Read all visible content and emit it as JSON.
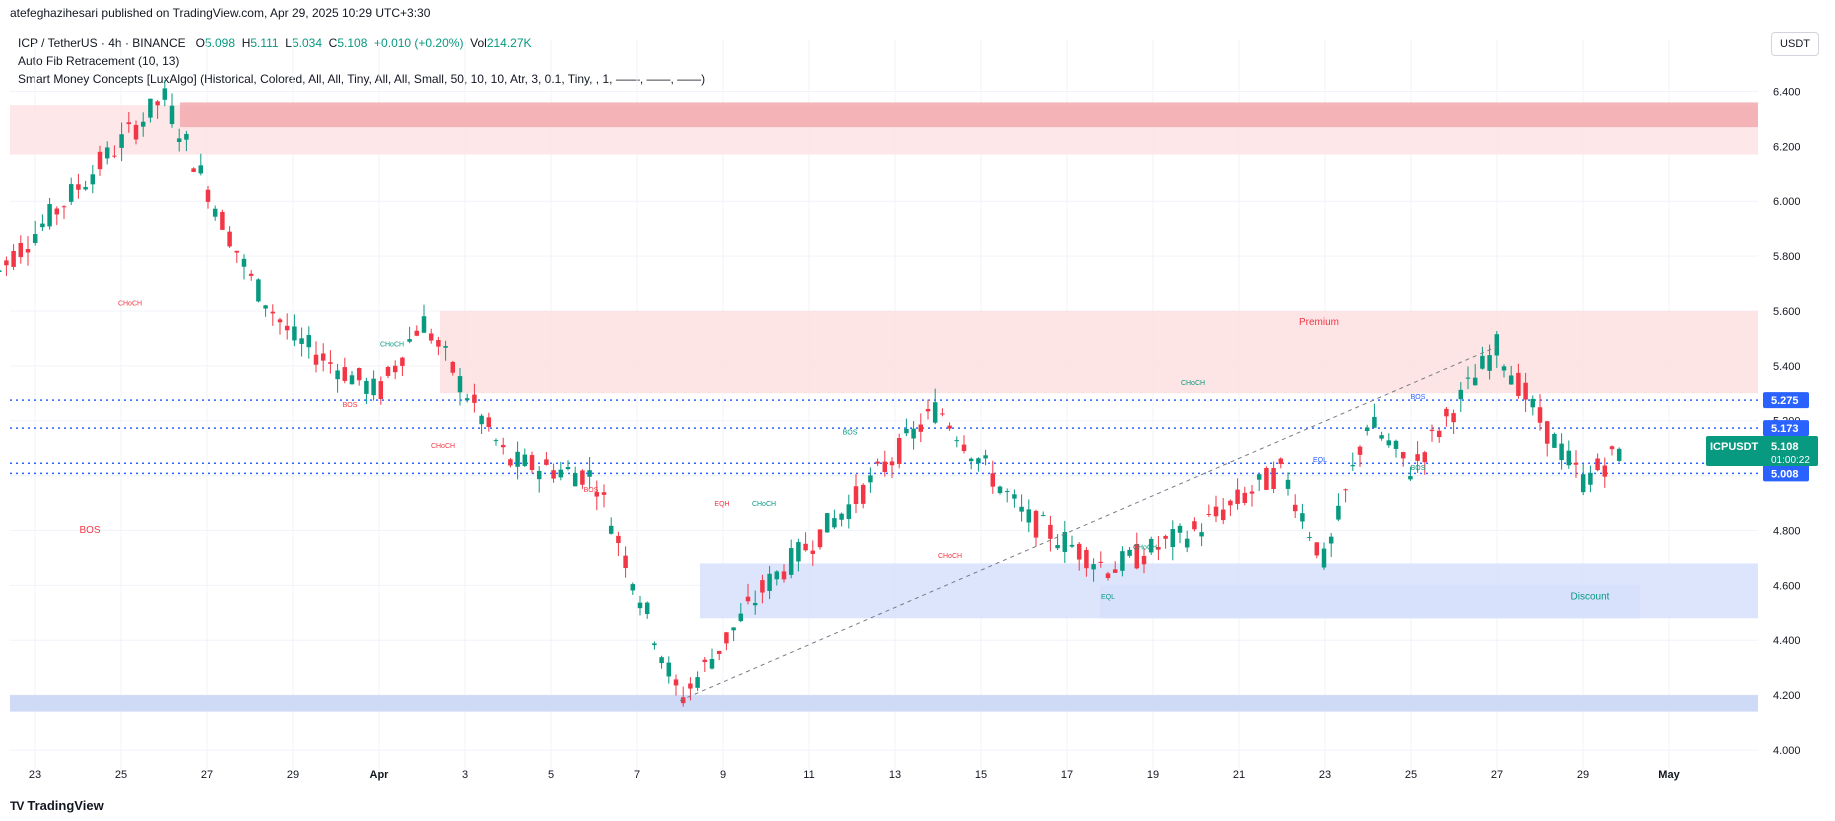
{
  "header": {
    "published": "atefeghazihesari published on TradingView.com, Apr 29, 2025 10:29 UTC+3:30"
  },
  "legend": {
    "symbol": "ICP / TetherUS · 4h · BINANCE",
    "o_label": "O",
    "o_value": "5.098",
    "h_label": "H",
    "h_value": "5.111",
    "l_label": "L",
    "l_value": "5.034",
    "c_label": "C",
    "c_value": "5.108",
    "change": "+0.010 (+0.20%)",
    "vol_label": "Vol",
    "vol_value": "214.27K",
    "indicator1": "Auto Fib Retracement (10, 13)",
    "indicator2": "Smart Money Concepts [LuxAlgo] (Historical, Colored, All, All, Tiny, All, All, Small, 50, 10, 10, Atr, 3, 0.1, Tiny, , 1, ——, ——, ——)"
  },
  "currency": "USDT",
  "footer": {
    "brand": "TradingView",
    "logo": "TV"
  },
  "colors": {
    "up": "#089981",
    "down": "#f23645",
    "blue": "#2962ff",
    "red_zone": "#f7c6c9",
    "blue_zone": "#c7d3f5"
  },
  "chart_data": {
    "type": "candlestick",
    "symbol": "ICPUSDT",
    "interval": "4h",
    "ylim": [
      4.0,
      6.5
    ],
    "y_ticks": [
      "6.400",
      "6.200",
      "6.000",
      "5.800",
      "5.600",
      "5.400",
      "5.200",
      "5.000",
      "4.800",
      "4.600",
      "4.400",
      "4.200",
      "4.000"
    ],
    "x_ticks": [
      "23",
      "25",
      "27",
      "29",
      "Apr",
      "3",
      "5",
      "7",
      "9",
      "11",
      "13",
      "15",
      "17",
      "19",
      "21",
      "23",
      "25",
      "27",
      "29",
      "May"
    ],
    "key_points": [
      {
        "date": "Mar 22",
        "price": 5.72
      },
      {
        "date": "Mar 26",
        "price": 6.38
      },
      {
        "date": "Mar 28",
        "price": 5.72
      },
      {
        "date": "Mar 29",
        "price": 5.5
      },
      {
        "date": "Mar 31",
        "price": 5.3
      },
      {
        "date": "Apr 1",
        "price": 5.57
      },
      {
        "date": "Apr 3",
        "price": 5.05
      },
      {
        "date": "Apr 5",
        "price": 5.0
      },
      {
        "date": "Apr 7",
        "price": 4.18
      },
      {
        "date": "Apr 9",
        "price": 4.6
      },
      {
        "date": "Apr 11",
        "price": 4.9
      },
      {
        "date": "Apr 13",
        "price": 5.25
      },
      {
        "date": "Apr 15",
        "price": 4.85
      },
      {
        "date": "Apr 17",
        "price": 4.66
      },
      {
        "date": "Apr 19",
        "price": 4.8
      },
      {
        "date": "Apr 21",
        "price": 5.02
      },
      {
        "date": "Apr 22",
        "price": 4.68
      },
      {
        "date": "Apr 23",
        "price": 5.2
      },
      {
        "date": "Apr 24",
        "price": 5.02
      },
      {
        "date": "Apr 26",
        "price": 5.47
      },
      {
        "date": "Apr 27",
        "price": 5.2
      },
      {
        "date": "Apr 28",
        "price": 4.98
      },
      {
        "date": "Apr 29",
        "price": 5.108
      }
    ],
    "price_labels": [
      {
        "text": "5.275",
        "value": 5.275,
        "color": "#2962ff"
      },
      {
        "text": "5.173",
        "value": 5.173,
        "color": "#2962ff"
      },
      {
        "text": "5.045",
        "value": 5.045,
        "color": "#2962ff"
      },
      {
        "text": "5.008",
        "value": 5.008,
        "color": "#2962ff"
      }
    ],
    "last_price": {
      "symbol": "ICPUSDT",
      "value": "5.108",
      "countdown": "01:00:22"
    },
    "zones": [
      {
        "label": "",
        "from": 6.17,
        "to": 6.35,
        "color": "#fde3e4"
      },
      {
        "label": "",
        "from": 6.27,
        "to": 6.36,
        "color": "#f2a9ae"
      },
      {
        "label": "Premium",
        "from": 5.3,
        "to": 5.6,
        "color": "#fde0e1"
      },
      {
        "label": "",
        "from": 4.48,
        "to": 4.68,
        "color": "#d6e0fb"
      },
      {
        "label": "Discount",
        "from": 4.48,
        "to": 4.6,
        "color": "#d6e0fb"
      },
      {
        "label": "",
        "from": 4.14,
        "to": 4.2,
        "color": "#c7d3f5"
      }
    ],
    "annotations": [
      "CHoCH",
      "BOS",
      "CHoCH",
      "BOS",
      "CHoCH",
      "BOS",
      "BOS",
      "EQH",
      "CHoCH",
      "BOS",
      "CHoCH",
      "CHoCH",
      "CHoCH",
      "EQL",
      "BOS",
      "EQL",
      "Premium",
      "Discount"
    ]
  }
}
